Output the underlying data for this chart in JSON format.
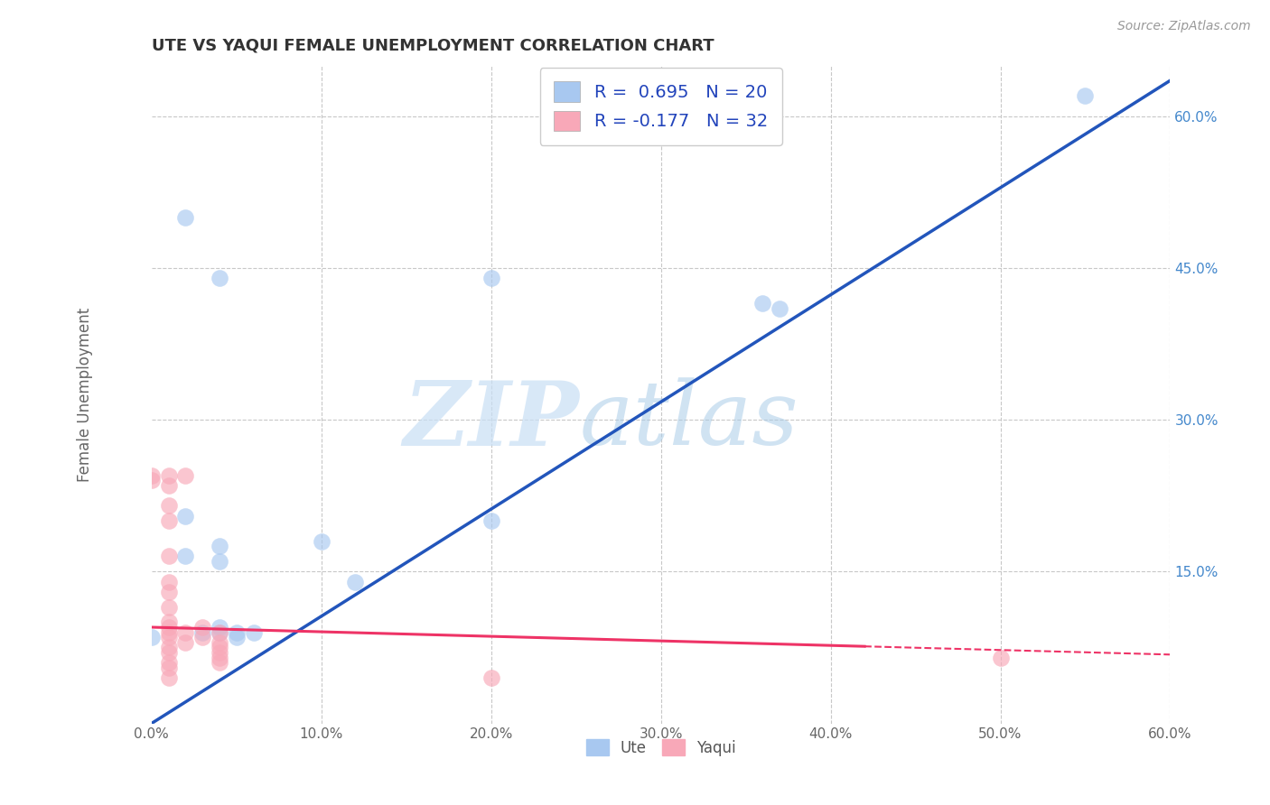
{
  "title": "UTE VS YAQUI FEMALE UNEMPLOYMENT CORRELATION CHART",
  "source": "Source: ZipAtlas.com",
  "ylabel": "Female Unemployment",
  "xlim": [
    0.0,
    0.6
  ],
  "ylim": [
    0.0,
    0.65
  ],
  "xticks": [
    0.0,
    0.1,
    0.2,
    0.3,
    0.4,
    0.5,
    0.6
  ],
  "xticklabels": [
    "0.0%",
    "10.0%",
    "20.0%",
    "30.0%",
    "40.0%",
    "50.0%",
    "60.0%"
  ],
  "yticks": [
    0.0,
    0.15,
    0.3,
    0.45,
    0.6
  ],
  "yticklabels": [
    "",
    "15.0%",
    "30.0%",
    "45.0%",
    "60.0%"
  ],
  "grid_color": "#c8c8c8",
  "background_color": "#ffffff",
  "watermark_zip": "ZIP",
  "watermark_atlas": "atlas",
  "ute_color": "#a8c8f0",
  "yaqui_color": "#f8a8b8",
  "ute_line_color": "#2255bb",
  "yaqui_line_color": "#ee3366",
  "legend_line1": "R =  0.695   N = 20",
  "legend_line2": "R = -0.177   N = 32",
  "ute_line_x0": 0.0,
  "ute_line_y0": 0.0,
  "ute_line_x1": 0.6,
  "ute_line_y1": 0.635,
  "yaqui_line_x0": 0.0,
  "yaqui_line_y0": 0.095,
  "yaqui_line_solid_x1": 0.42,
  "yaqui_line_dash_x1": 0.6,
  "yaqui_slope": -0.045,
  "ute_points": [
    [
      0.02,
      0.5
    ],
    [
      0.04,
      0.44
    ],
    [
      0.2,
      0.44
    ],
    [
      0.37,
      0.41
    ],
    [
      0.36,
      0.415
    ],
    [
      0.55,
      0.62
    ],
    [
      0.02,
      0.205
    ],
    [
      0.04,
      0.175
    ],
    [
      0.02,
      0.165
    ],
    [
      0.04,
      0.16
    ],
    [
      0.04,
      0.09
    ],
    [
      0.05,
      0.09
    ],
    [
      0.05,
      0.085
    ],
    [
      0.06,
      0.09
    ],
    [
      0.1,
      0.18
    ],
    [
      0.12,
      0.14
    ],
    [
      0.2,
      0.2
    ],
    [
      0.04,
      0.095
    ],
    [
      0.03,
      0.09
    ],
    [
      0.0,
      0.085
    ]
  ],
  "yaqui_points": [
    [
      0.0,
      0.245
    ],
    [
      0.0,
      0.24
    ],
    [
      0.01,
      0.245
    ],
    [
      0.01,
      0.235
    ],
    [
      0.01,
      0.215
    ],
    [
      0.01,
      0.2
    ],
    [
      0.01,
      0.165
    ],
    [
      0.01,
      0.14
    ],
    [
      0.01,
      0.13
    ],
    [
      0.01,
      0.115
    ],
    [
      0.01,
      0.1
    ],
    [
      0.01,
      0.095
    ],
    [
      0.01,
      0.09
    ],
    [
      0.01,
      0.085
    ],
    [
      0.01,
      0.075
    ],
    [
      0.01,
      0.07
    ],
    [
      0.01,
      0.06
    ],
    [
      0.01,
      0.055
    ],
    [
      0.01,
      0.045
    ],
    [
      0.02,
      0.245
    ],
    [
      0.02,
      0.09
    ],
    [
      0.02,
      0.08
    ],
    [
      0.03,
      0.095
    ],
    [
      0.03,
      0.085
    ],
    [
      0.04,
      0.09
    ],
    [
      0.04,
      0.08
    ],
    [
      0.04,
      0.075
    ],
    [
      0.04,
      0.07
    ],
    [
      0.04,
      0.065
    ],
    [
      0.04,
      0.06
    ],
    [
      0.2,
      0.045
    ],
    [
      0.5,
      0.065
    ]
  ]
}
